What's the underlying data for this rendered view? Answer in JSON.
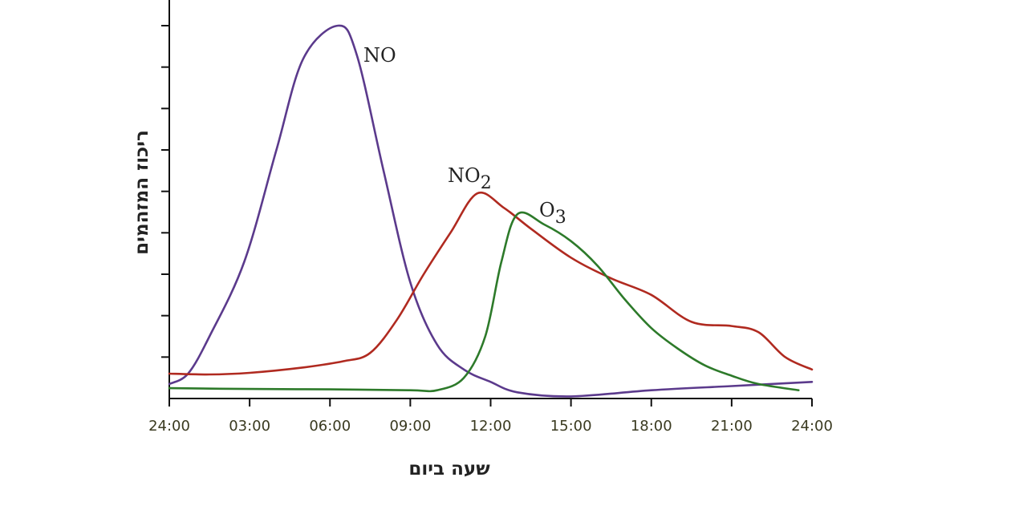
{
  "chart_data": {
    "type": "line",
    "title": "",
    "xlabel": "שעה ביום",
    "ylabel": "ריכוז המזהמים",
    "x_tick_labels": [
      "24:00",
      "03:00",
      "06:00",
      "09:00",
      "12:00",
      "15:00",
      "18:00",
      "21:00",
      "24:00"
    ],
    "xlim": [
      0,
      24
    ],
    "ylim": [
      0,
      9
    ],
    "y_tick_labels_shown": false,
    "grid": false,
    "legend": "inline labels near curves",
    "series": [
      {
        "name": "NO",
        "label_main": "NO",
        "label_sub": "",
        "color": "#5b3a8c",
        "points": [
          [
            0,
            0.35
          ],
          [
            0.7,
            0.6
          ],
          [
            1.5,
            1.5
          ],
          [
            2.8,
            3.3
          ],
          [
            4,
            6.0
          ],
          [
            5,
            8.2
          ],
          [
            6.3,
            9.0
          ],
          [
            7,
            8.3
          ],
          [
            8,
            5.5
          ],
          [
            9,
            2.8
          ],
          [
            10,
            1.3
          ],
          [
            11,
            0.7
          ],
          [
            12,
            0.4
          ],
          [
            13,
            0.15
          ],
          [
            15,
            0.05
          ],
          [
            18,
            0.2
          ],
          [
            21,
            0.3
          ],
          [
            24,
            0.4
          ]
        ]
      },
      {
        "name": "NO2",
        "label_main": "NO",
        "label_sub": "2",
        "color": "#b02a20",
        "points": [
          [
            0,
            0.6
          ],
          [
            1.5,
            0.58
          ],
          [
            3,
            0.62
          ],
          [
            5,
            0.75
          ],
          [
            6.5,
            0.9
          ],
          [
            7.5,
            1.1
          ],
          [
            8.5,
            1.9
          ],
          [
            9.5,
            3.0
          ],
          [
            10.5,
            4.0
          ],
          [
            11.5,
            4.95
          ],
          [
            12.5,
            4.6
          ],
          [
            13.5,
            4.1
          ],
          [
            15,
            3.4
          ],
          [
            16.5,
            2.9
          ],
          [
            18,
            2.5
          ],
          [
            19.5,
            1.85
          ],
          [
            21,
            1.75
          ],
          [
            22,
            1.6
          ],
          [
            23,
            1.0
          ],
          [
            24,
            0.7
          ]
        ]
      },
      {
        "name": "O3",
        "label_main": "O",
        "label_sub": "3",
        "color": "#2d7a2a",
        "points": [
          [
            0,
            0.25
          ],
          [
            3,
            0.23
          ],
          [
            6,
            0.22
          ],
          [
            9,
            0.2
          ],
          [
            10,
            0.2
          ],
          [
            11,
            0.5
          ],
          [
            11.8,
            1.5
          ],
          [
            12.4,
            3.3
          ],
          [
            13,
            4.45
          ],
          [
            14,
            4.2
          ],
          [
            15,
            3.8
          ],
          [
            16,
            3.2
          ],
          [
            17,
            2.4
          ],
          [
            18,
            1.7
          ],
          [
            19,
            1.2
          ],
          [
            20,
            0.8
          ],
          [
            21,
            0.55
          ],
          [
            22,
            0.35
          ],
          [
            23.5,
            0.2
          ]
        ]
      }
    ]
  }
}
